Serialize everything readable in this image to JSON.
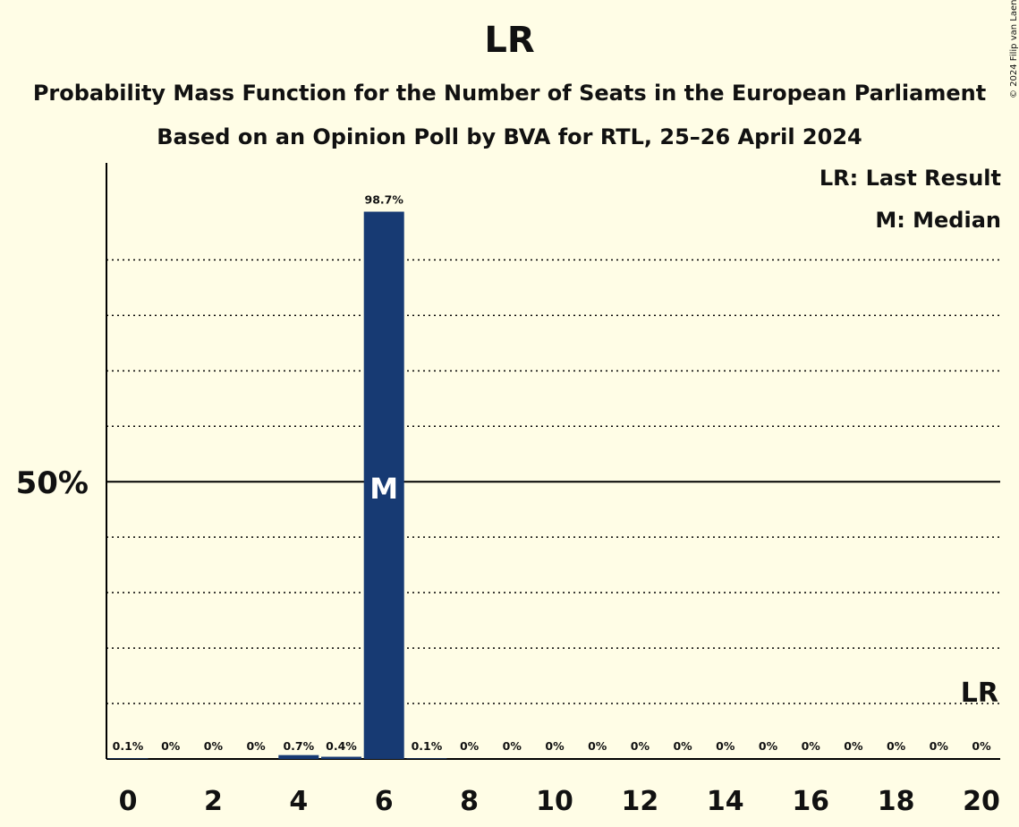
{
  "header": {
    "title": "LR",
    "subtitle_1": "Probability Mass Function for the Number of Seats in the European Parliament",
    "subtitle_2": "Based on an Opinion Poll by BVA for RTL, 25–26 April 2024",
    "copyright": "© 2024 Filip van Laenen"
  },
  "legend": {
    "last_result": "LR: Last Result",
    "median": "M: Median"
  },
  "chart_data": {
    "type": "bar",
    "categories": [
      0,
      1,
      2,
      3,
      4,
      5,
      6,
      7,
      8,
      9,
      10,
      11,
      12,
      13,
      14,
      15,
      16,
      17,
      18,
      19,
      20
    ],
    "values": [
      0.1,
      0,
      0,
      0,
      0.7,
      0.4,
      98.7,
      0.1,
      0,
      0,
      0,
      0,
      0,
      0,
      0,
      0,
      0,
      0,
      0,
      0,
      0
    ],
    "value_labels": [
      "0.1%",
      "0%",
      "0%",
      "0%",
      "0.7%",
      "0.4%",
      "98.7%",
      "0.1%",
      "0%",
      "0%",
      "0%",
      "0%",
      "0%",
      "0%",
      "0%",
      "0%",
      "0%",
      "0%",
      "0%",
      "0%",
      "0%"
    ],
    "x_tick_labels": [
      "0",
      "2",
      "4",
      "6",
      "8",
      "10",
      "12",
      "14",
      "16",
      "18",
      "20"
    ],
    "y_tick_label": "50%",
    "ylim": [
      0,
      107.5
    ],
    "median_seat": 6,
    "median_marker": "M",
    "last_result_seat": 20,
    "last_result_marker": "LR",
    "grid": true,
    "bar_color": "#173a73",
    "background_color": "#fffde6"
  }
}
